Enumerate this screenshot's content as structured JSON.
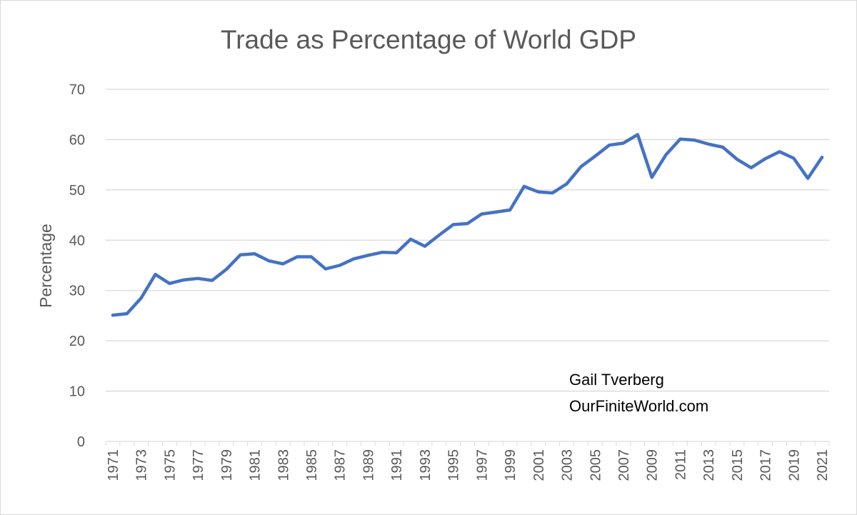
{
  "chart_data": {
    "type": "line",
    "title": "Trade as Percentage of World GDP",
    "xlabel": "",
    "ylabel": "Percentage",
    "ylim": [
      0,
      70
    ],
    "yticks": [
      0,
      10,
      20,
      30,
      40,
      50,
      60,
      70
    ],
    "grid": true,
    "legend": "none",
    "annotations": [
      "Gail Tverberg",
      "OurFiniteWorld.com"
    ],
    "line_color": "#4472c4",
    "x": [
      1971,
      1972,
      1973,
      1974,
      1975,
      1976,
      1977,
      1978,
      1979,
      1980,
      1981,
      1982,
      1983,
      1984,
      1985,
      1986,
      1987,
      1988,
      1989,
      1990,
      1991,
      1992,
      1993,
      1994,
      1995,
      1996,
      1997,
      1998,
      1999,
      2000,
      2001,
      2002,
      2003,
      2004,
      2005,
      2006,
      2007,
      2008,
      2009,
      2010,
      2011,
      2012,
      2013,
      2014,
      2015,
      2016,
      2017,
      2018,
      2019,
      2020,
      2021
    ],
    "x_tick_labels": [
      "1971",
      "1973",
      "1975",
      "1977",
      "1979",
      "1981",
      "1983",
      "1985",
      "1987",
      "1989",
      "1991",
      "1993",
      "1995",
      "1997",
      "1999",
      "2001",
      "2003",
      "2005",
      "2007",
      "2009",
      "2011",
      "2013",
      "2015",
      "2017",
      "2019",
      "2021"
    ],
    "series": [
      {
        "values": [
          25.1,
          25.4,
          28.5,
          33.2,
          31.4,
          32.1,
          32.4,
          32.0,
          34.2,
          37.1,
          37.3,
          35.9,
          35.3,
          36.7,
          36.7,
          34.3,
          35.0,
          36.3,
          37.0,
          37.6,
          37.5,
          40.2,
          38.8,
          41.0,
          43.1,
          43.3,
          45.2,
          45.6,
          46.0,
          50.7,
          49.6,
          49.4,
          51.2,
          54.6,
          56.7,
          58.9,
          59.3,
          61.0,
          52.5,
          57.0,
          60.1,
          59.9,
          59.1,
          58.5,
          56.1,
          54.4,
          56.2,
          57.6,
          56.3,
          52.3,
          56.5
        ]
      }
    ]
  }
}
